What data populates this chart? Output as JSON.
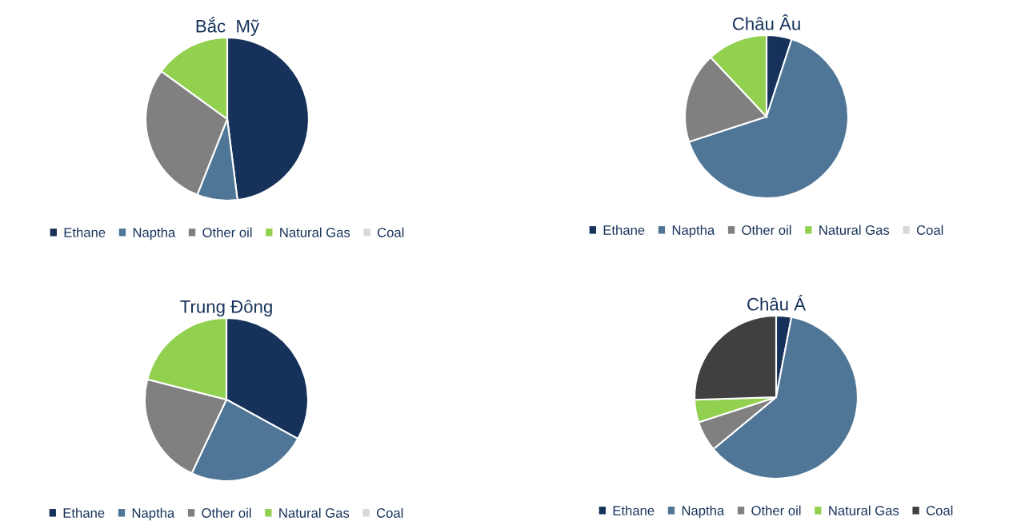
{
  "chart_data": [
    {
      "type": "pie",
      "title": "Bắc  Mỹ",
      "categories": [
        "Ethane",
        "Naptha",
        "Other oil",
        "Natural Gas",
        "Coal"
      ],
      "values": [
        48,
        8,
        29,
        15,
        0
      ],
      "colors": [
        "#17325a",
        "#4f7696",
        "#808080",
        "#92d050",
        "#d9d9d9"
      ],
      "legend": "bottom"
    },
    {
      "type": "pie",
      "title": "Châu Âu",
      "categories": [
        "Ethane",
        "Naptha",
        "Other oil",
        "Natural Gas",
        "Coal"
      ],
      "values": [
        5,
        65,
        18,
        12,
        0
      ],
      "colors": [
        "#17325a",
        "#4f7696",
        "#808080",
        "#92d050",
        "#d9d9d9"
      ],
      "legend": "bottom"
    },
    {
      "type": "pie",
      "title": "Trung Đông",
      "categories": [
        "Ethane",
        "Naptha",
        "Other oil",
        "Natural Gas",
        "Coal"
      ],
      "values": [
        33,
        24,
        22,
        21,
        0
      ],
      "colors": [
        "#17325a",
        "#4f7696",
        "#808080",
        "#92d050",
        "#d9d9d9"
      ],
      "legend": "bottom"
    },
    {
      "type": "pie",
      "title": "Châu Á",
      "categories": [
        "Ethane",
        "Naptha",
        "Other oil",
        "Natural Gas",
        "Coal"
      ],
      "values": [
        3,
        61,
        6,
        4.5,
        25.5
      ],
      "colors": [
        "#17325a",
        "#4f7696",
        "#808080",
        "#92d050",
        "#404040"
      ],
      "legend": "bottom"
    }
  ]
}
